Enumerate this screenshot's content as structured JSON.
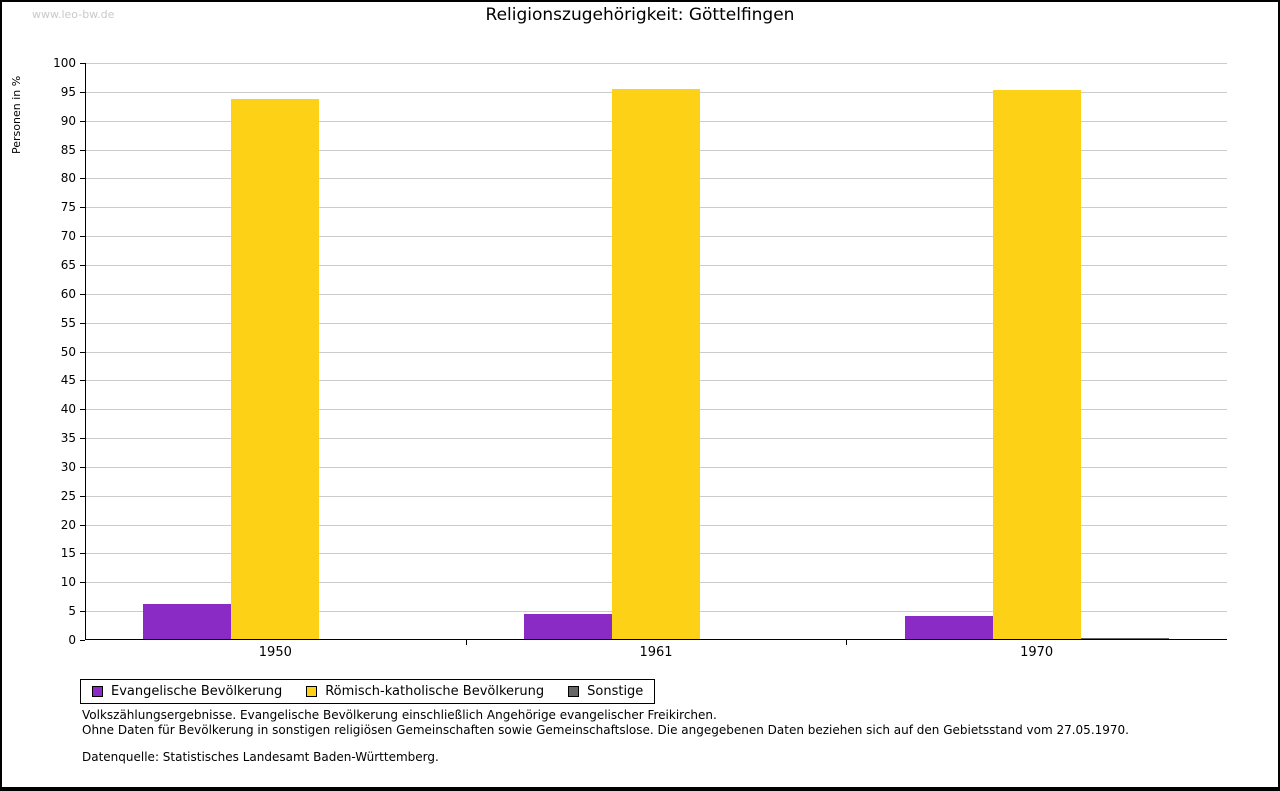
{
  "watermark": "www.leo-bw.de",
  "chart_data": {
    "type": "bar",
    "title": "Religionszugehörigkeit: Göttelfingen",
    "xlabel": "",
    "ylabel": "Personen in %",
    "categories": [
      "1950",
      "1961",
      "1970"
    ],
    "series": [
      {
        "name": "Evangelische Bevölkerung",
        "color": "#8b2bc6",
        "values": [
          6.2,
          4.5,
          4.2
        ]
      },
      {
        "name": "Römisch-katholische Bevölkerung",
        "color": "#fcd116",
        "values": [
          93.8,
          95.5,
          95.4
        ]
      },
      {
        "name": "Sonstige",
        "color": "#666666",
        "values": [
          0,
          0,
          0.4
        ]
      }
    ],
    "ylim": [
      0,
      100
    ],
    "ytick_step": 5,
    "grid": true,
    "legend_position": "bottom-left"
  },
  "footnotes": {
    "line1": "Volkszählungsergebnisse. Evangelische Bevölkerung einschließlich Angehörige evangelischer Freikirchen.",
    "line2": "Ohne Daten für Bevölkerung in sonstigen religiösen Gemeinschaften sowie Gemeinschaftslose. Die angegebenen Daten beziehen sich auf den Gebietsstand vom 27.05.1970.",
    "source": "Datenquelle: Statistisches Landesamt Baden-Württemberg."
  }
}
